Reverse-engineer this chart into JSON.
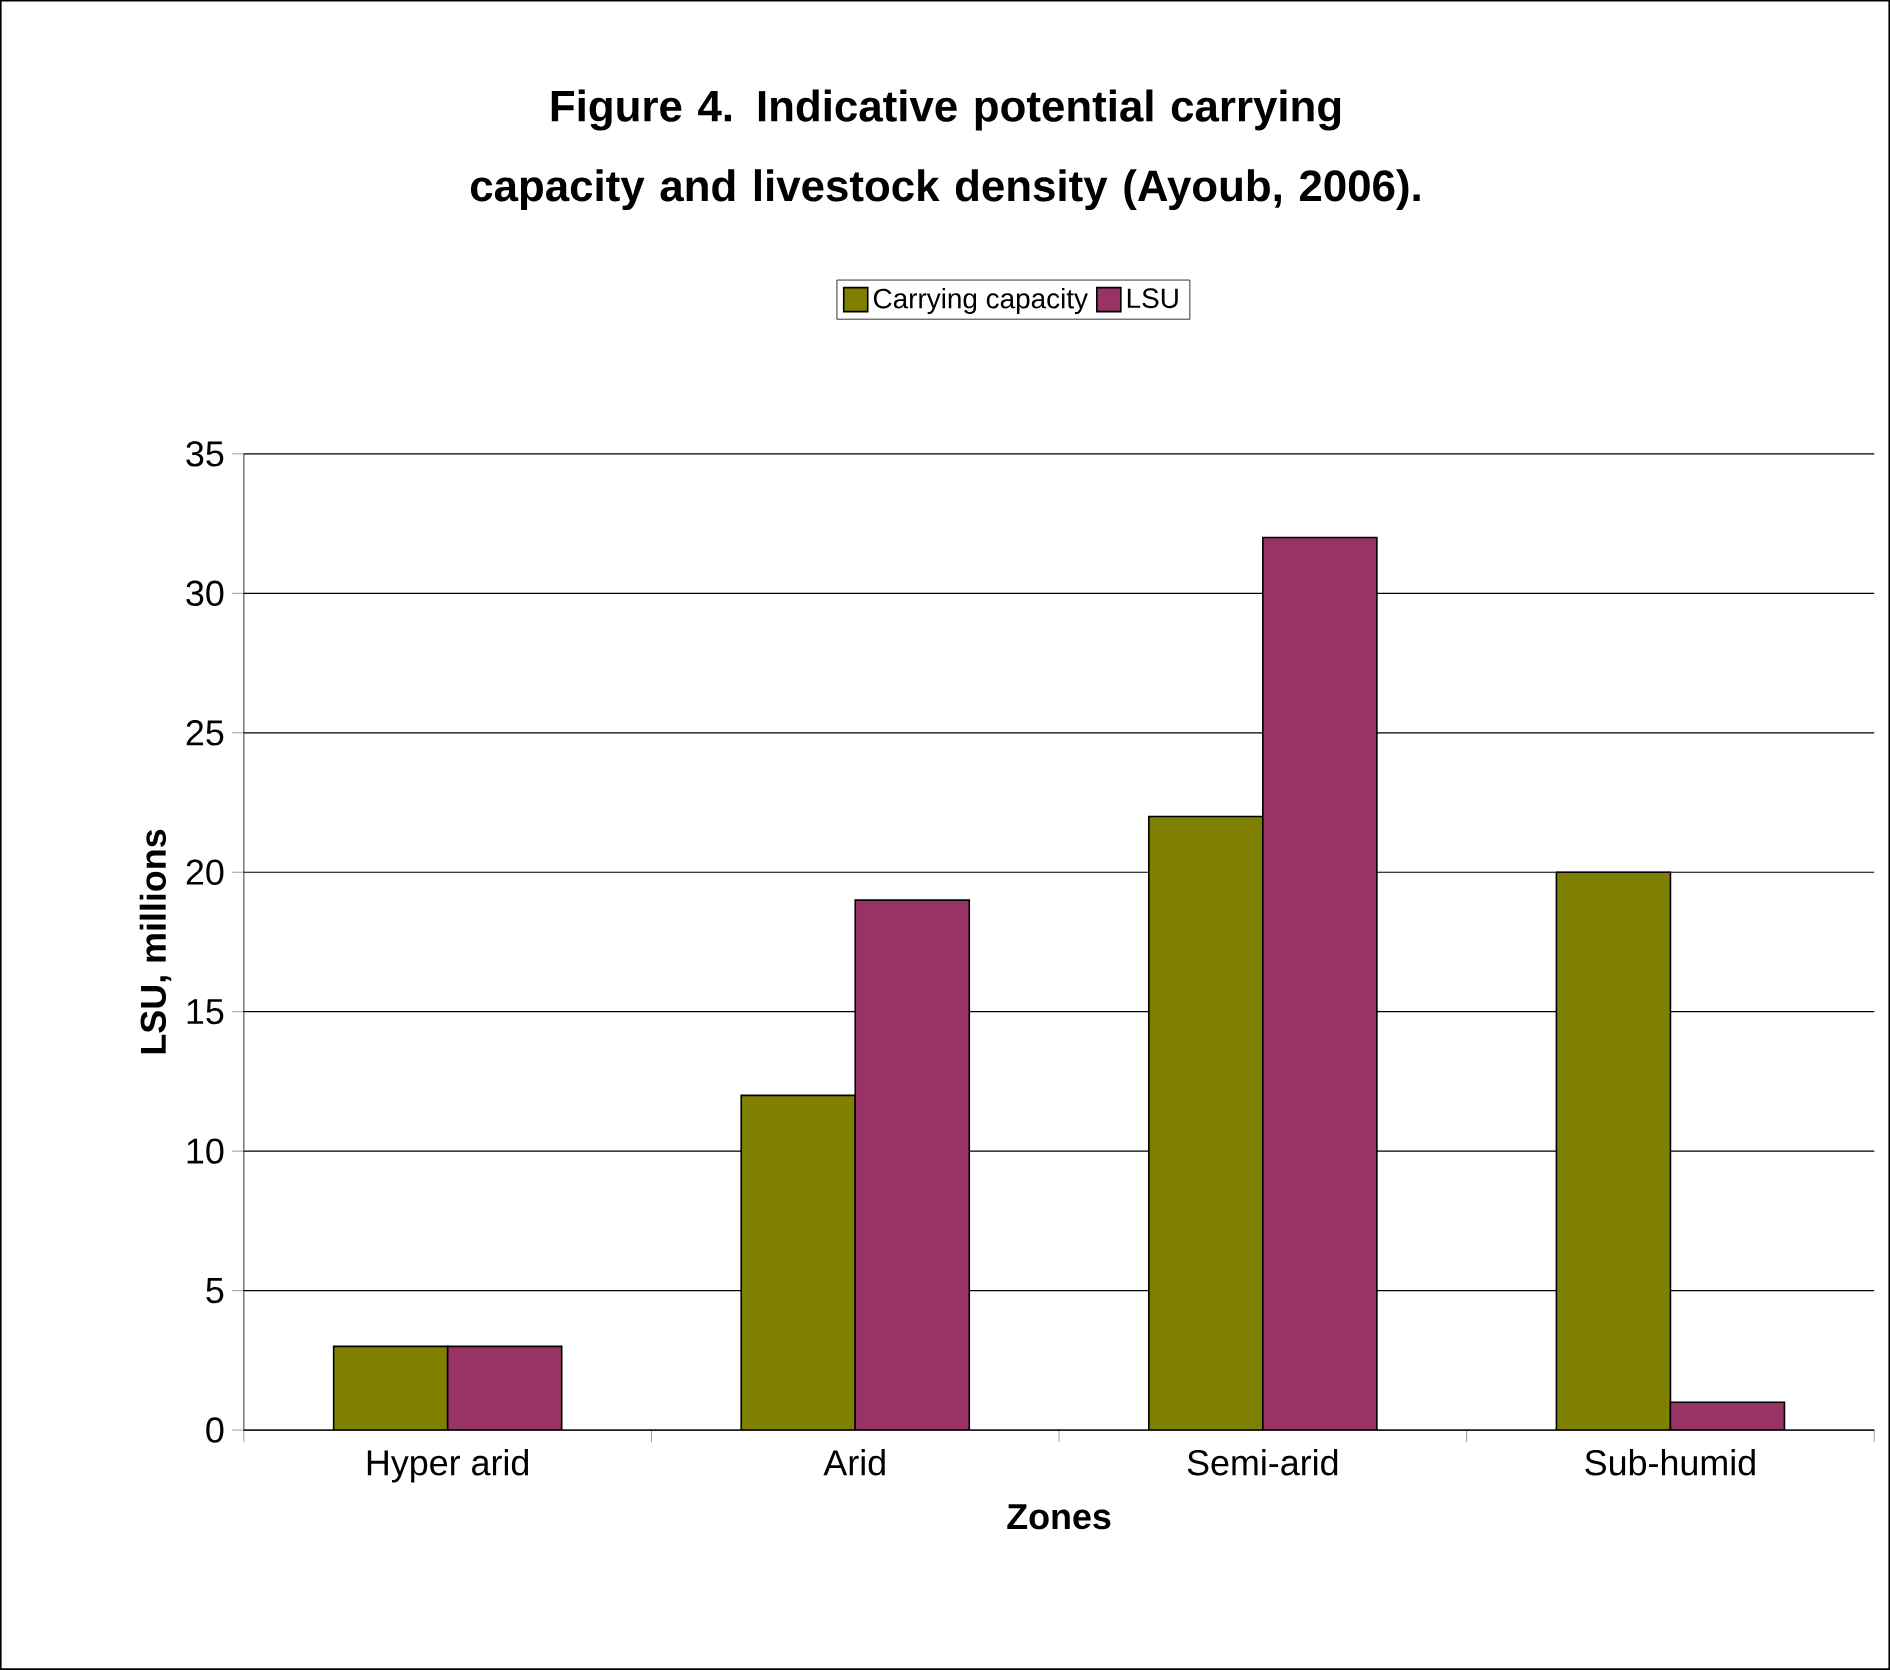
{
  "chart_data": {
    "type": "bar",
    "title": "Figure 4. Indicative potential carrying capacity and livestock density (Ayoub, 2006).",
    "xlabel": "Zones",
    "ylabel": "LSU, millions",
    "categories": [
      "Hyper arid",
      "Arid",
      "Semi-arid",
      "Sub-humid"
    ],
    "series": [
      {
        "name": "Carrying capacity",
        "color": "#808000",
        "values": [
          3,
          12,
          22,
          20
        ]
      },
      {
        "name": "LSU",
        "color": "#993366",
        "values": [
          3,
          19,
          32,
          1
        ]
      }
    ],
    "ylim": [
      0,
      35
    ],
    "yticks": [
      0,
      5,
      10,
      15,
      20,
      25,
      30,
      35
    ],
    "grid": "y",
    "legend": "top"
  }
}
